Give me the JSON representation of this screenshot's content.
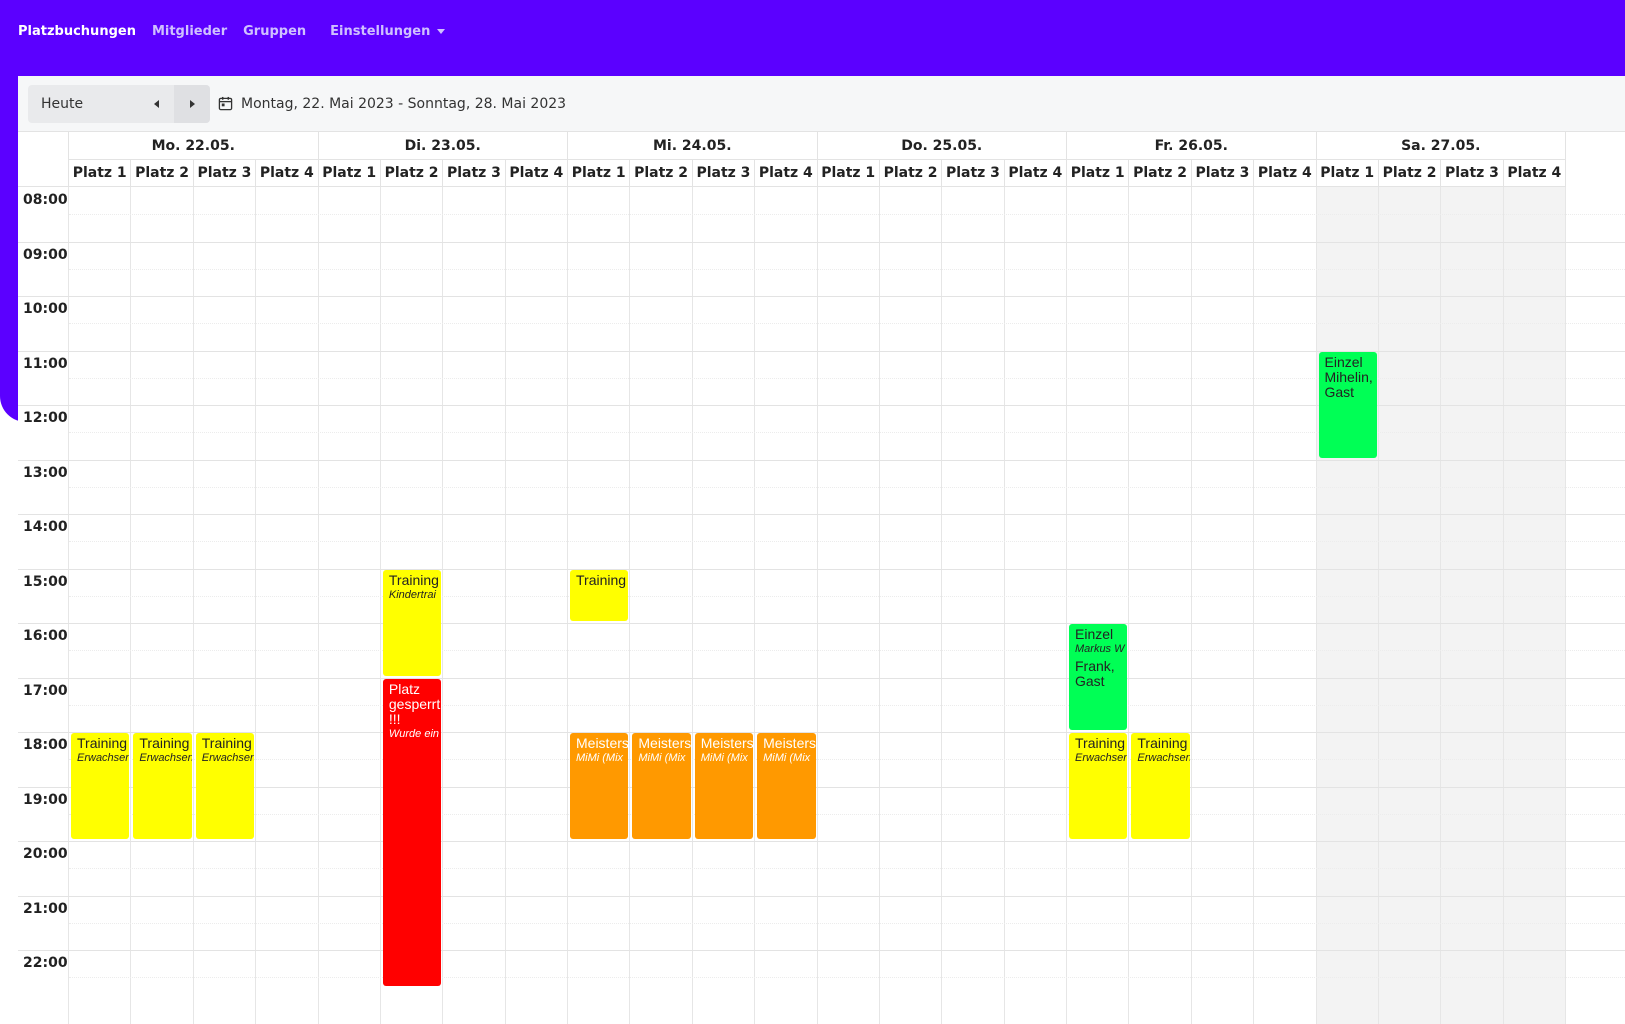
{
  "nav": {
    "items": [
      "Platzbuchungen",
      "Mitglieder",
      "Gruppen"
    ],
    "settings_label": "Einstellungen"
  },
  "toolbar": {
    "today_label": "Heute",
    "date_range": "Montag, 22. Mai 2023 - Sonntag, 28. Mai 2023"
  },
  "days": [
    {
      "label": "Mo. 22.05.",
      "weekend": false
    },
    {
      "label": "Di. 23.05.",
      "weekend": false
    },
    {
      "label": "Mi. 24.05.",
      "weekend": false
    },
    {
      "label": "Do. 25.05.",
      "weekend": false
    },
    {
      "label": "Fr. 26.05.",
      "weekend": false
    },
    {
      "label": "Sa. 27.05.",
      "weekend": true
    }
  ],
  "courts": [
    "Platz 1",
    "Platz 2",
    "Platz 3",
    "Platz 4"
  ],
  "times": [
    "08:00",
    "09:00",
    "10:00",
    "11:00",
    "12:00",
    "13:00",
    "14:00",
    "15:00",
    "16:00",
    "17:00",
    "18:00",
    "19:00",
    "20:00",
    "21:00",
    "22:00"
  ],
  "colors": {
    "navbar": "#5b00ff",
    "training": "#ffff00",
    "blocked": "#ff0000",
    "championship": "#ff9900",
    "single": "#00ff55"
  },
  "events": [
    {
      "day": 0,
      "court": 0,
      "start": 18,
      "end": 20,
      "type": "training",
      "title": "Training",
      "sub": "Erwachsen"
    },
    {
      "day": 0,
      "court": 1,
      "start": 18,
      "end": 20,
      "type": "training",
      "title": "Training",
      "sub": "Erwachsen"
    },
    {
      "day": 0,
      "court": 2,
      "start": 18,
      "end": 20,
      "type": "training",
      "title": "Training",
      "sub": "Erwachsen"
    },
    {
      "day": 1,
      "court": 1,
      "start": 15,
      "end": 17,
      "type": "training",
      "title": "Training",
      "sub": "Kindertrai"
    },
    {
      "day": 1,
      "court": 1,
      "start": 17,
      "end": 22.7,
      "type": "blocked",
      "title": "Platz gesperrt !!!",
      "sub": "Wurde ein"
    },
    {
      "day": 2,
      "court": 0,
      "start": 15,
      "end": 16,
      "type": "training",
      "title": "Training",
      "sub": ""
    },
    {
      "day": 2,
      "court": 0,
      "start": 18,
      "end": 20,
      "type": "championship",
      "title": "Meisters",
      "sub": "MiMi (Mix"
    },
    {
      "day": 2,
      "court": 1,
      "start": 18,
      "end": 20,
      "type": "championship",
      "title": "Meisters",
      "sub": "MiMi (Mix"
    },
    {
      "day": 2,
      "court": 2,
      "start": 18,
      "end": 20,
      "type": "championship",
      "title": "Meisters",
      "sub": "MiMi (Mix"
    },
    {
      "day": 2,
      "court": 3,
      "start": 18,
      "end": 20,
      "type": "championship",
      "title": "Meisters",
      "sub": "MiMi (Mix"
    },
    {
      "day": 4,
      "court": 0,
      "start": 16,
      "end": 18,
      "type": "single",
      "title": "Einzel",
      "sub": "Markus W",
      "extra": "Frank, Gast"
    },
    {
      "day": 4,
      "court": 0,
      "start": 18,
      "end": 20,
      "type": "training",
      "title": "Training",
      "sub": "Erwachsen"
    },
    {
      "day": 4,
      "court": 1,
      "start": 18,
      "end": 20,
      "type": "training",
      "title": "Training",
      "sub": "Erwachsen"
    },
    {
      "day": 5,
      "court": 0,
      "start": 11,
      "end": 13,
      "type": "single",
      "title": "Einzel Mihelin, Gast",
      "sub": ""
    }
  ]
}
